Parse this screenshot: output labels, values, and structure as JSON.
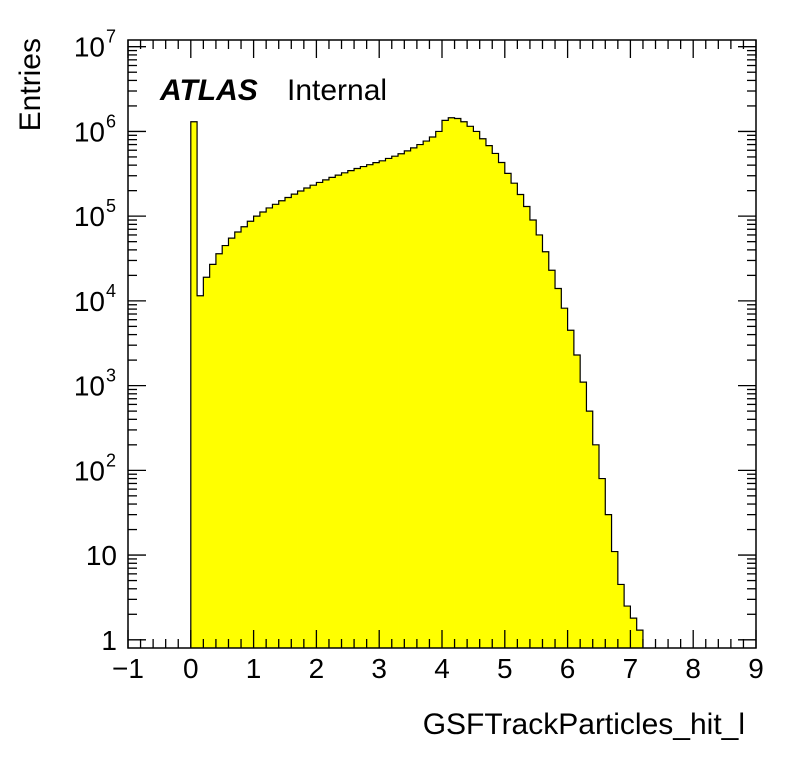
{
  "chart_data": {
    "type": "histogram",
    "title": "",
    "xlabel": "GSFTrackParticles_hit_l",
    "ylabel": "Entries",
    "xlim": [
      -1,
      9
    ],
    "ylim": [
      0.8,
      12000000
    ],
    "y_scale": "log",
    "fill_color": "#ffff00",
    "line_color": "#000000",
    "grid": false,
    "legend": "none",
    "annotation": {
      "bold": "ATLAS",
      "text": "Internal"
    },
    "x_ticks": [
      "−1",
      "0",
      "1",
      "2",
      "3",
      "4",
      "5",
      "6",
      "7",
      "8",
      "9"
    ],
    "y_ticks": [
      {
        "value": 1,
        "base": "1",
        "exp": ""
      },
      {
        "value": 10,
        "base": "10",
        "exp": ""
      },
      {
        "value": 100,
        "base": "10",
        "exp": "2"
      },
      {
        "value": 1000,
        "base": "10",
        "exp": "3"
      },
      {
        "value": 10000,
        "base": "10",
        "exp": "4"
      },
      {
        "value": 100000,
        "base": "10",
        "exp": "5"
      },
      {
        "value": 1000000,
        "base": "10",
        "exp": "6"
      },
      {
        "value": 10000000,
        "base": "10",
        "exp": "7"
      }
    ],
    "bin_width": 0.1,
    "bins": [
      {
        "x": 0.0,
        "y": 1300000
      },
      {
        "x": 0.1,
        "y": 11500
      },
      {
        "x": 0.2,
        "y": 19000
      },
      {
        "x": 0.3,
        "y": 27000
      },
      {
        "x": 0.4,
        "y": 36000
      },
      {
        "x": 0.5,
        "y": 45000
      },
      {
        "x": 0.6,
        "y": 55000
      },
      {
        "x": 0.7,
        "y": 65000
      },
      {
        "x": 0.8,
        "y": 75000
      },
      {
        "x": 0.9,
        "y": 87000
      },
      {
        "x": 1.0,
        "y": 100000
      },
      {
        "x": 1.1,
        "y": 112000
      },
      {
        "x": 1.2,
        "y": 125000
      },
      {
        "x": 1.3,
        "y": 138000
      },
      {
        "x": 1.4,
        "y": 152000
      },
      {
        "x": 1.5,
        "y": 166000
      },
      {
        "x": 1.6,
        "y": 182000
      },
      {
        "x": 1.7,
        "y": 198000
      },
      {
        "x": 1.8,
        "y": 215000
      },
      {
        "x": 1.9,
        "y": 232000
      },
      {
        "x": 2.0,
        "y": 250000
      },
      {
        "x": 2.1,
        "y": 268000
      },
      {
        "x": 2.2,
        "y": 287000
      },
      {
        "x": 2.3,
        "y": 305000
      },
      {
        "x": 2.4,
        "y": 325000
      },
      {
        "x": 2.5,
        "y": 345000
      },
      {
        "x": 2.6,
        "y": 365000
      },
      {
        "x": 2.7,
        "y": 385000
      },
      {
        "x": 2.8,
        "y": 405000
      },
      {
        "x": 2.9,
        "y": 428000
      },
      {
        "x": 3.0,
        "y": 450000
      },
      {
        "x": 3.1,
        "y": 480000
      },
      {
        "x": 3.2,
        "y": 510000
      },
      {
        "x": 3.3,
        "y": 545000
      },
      {
        "x": 3.4,
        "y": 590000
      },
      {
        "x": 3.5,
        "y": 640000
      },
      {
        "x": 3.6,
        "y": 700000
      },
      {
        "x": 3.7,
        "y": 770000
      },
      {
        "x": 3.8,
        "y": 860000
      },
      {
        "x": 3.9,
        "y": 1000000
      },
      {
        "x": 4.0,
        "y": 1350000
      },
      {
        "x": 4.1,
        "y": 1450000
      },
      {
        "x": 4.2,
        "y": 1420000
      },
      {
        "x": 4.3,
        "y": 1300000
      },
      {
        "x": 4.4,
        "y": 1150000
      },
      {
        "x": 4.5,
        "y": 1000000
      },
      {
        "x": 4.6,
        "y": 820000
      },
      {
        "x": 4.7,
        "y": 680000
      },
      {
        "x": 4.8,
        "y": 550000
      },
      {
        "x": 4.9,
        "y": 430000
      },
      {
        "x": 5.0,
        "y": 320000
      },
      {
        "x": 5.1,
        "y": 245000
      },
      {
        "x": 5.2,
        "y": 180000
      },
      {
        "x": 5.3,
        "y": 130000
      },
      {
        "x": 5.4,
        "y": 90000
      },
      {
        "x": 5.5,
        "y": 60000
      },
      {
        "x": 5.6,
        "y": 38000
      },
      {
        "x": 5.7,
        "y": 23000
      },
      {
        "x": 5.8,
        "y": 14000
      },
      {
        "x": 5.9,
        "y": 8200
      },
      {
        "x": 6.0,
        "y": 4500
      },
      {
        "x": 6.1,
        "y": 2300
      },
      {
        "x": 6.2,
        "y": 1100
      },
      {
        "x": 6.3,
        "y": 500
      },
      {
        "x": 6.4,
        "y": 200
      },
      {
        "x": 6.5,
        "y": 80
      },
      {
        "x": 6.6,
        "y": 30
      },
      {
        "x": 6.7,
        "y": 11
      },
      {
        "x": 6.8,
        "y": 4.5
      },
      {
        "x": 6.9,
        "y": 2.5
      },
      {
        "x": 7.0,
        "y": 1.8
      },
      {
        "x": 7.1,
        "y": 1.3
      }
    ]
  }
}
